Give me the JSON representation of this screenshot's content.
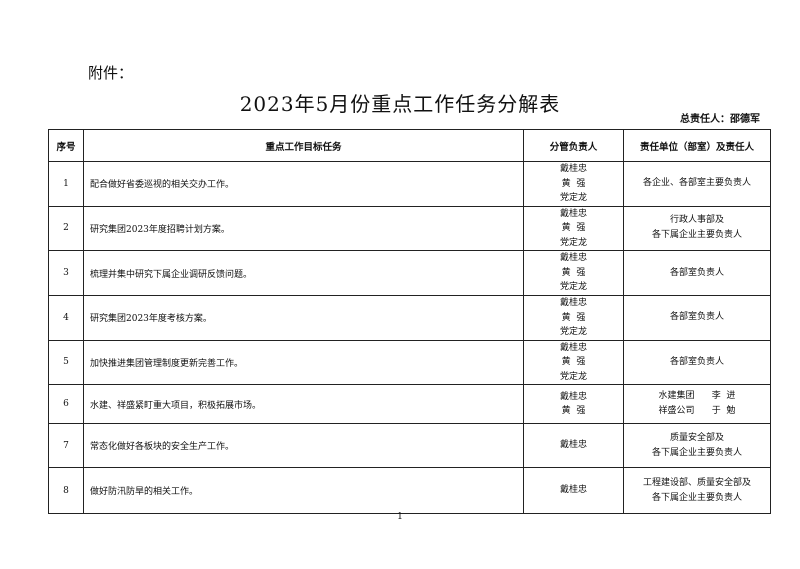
{
  "attachment_label": "附件：",
  "title": "2023年5月份重点工作任务分解表",
  "overall_owner": "总责任人：邵德军",
  "table": {
    "headers": [
      "序号",
      "重点工作目标任务",
      "分管负责人",
      "责任单位（部室）及责任人"
    ],
    "rows": [
      {
        "no": "1",
        "task": "配合做好省委巡视的相关交办工作。",
        "leads": [
          "戴桂忠",
          "黄  强",
          "党定龙"
        ],
        "units": [
          "各企业、各部室主要负责人"
        ]
      },
      {
        "no": "2",
        "task": "研究集团2023年度招聘计划方案。",
        "leads": [
          "戴桂忠",
          "黄  强",
          "党定龙"
        ],
        "units": [
          "行政人事部及",
          "各下属企业主要负责人"
        ]
      },
      {
        "no": "3",
        "task": "梳理并集中研究下属企业调研反馈问题。",
        "leads": [
          "戴桂忠",
          "黄  强",
          "党定龙"
        ],
        "units": [
          "各部室负责人"
        ]
      },
      {
        "no": "4",
        "task": "研究集团2023年度考核方案。",
        "leads": [
          "戴桂忠",
          "黄  强",
          "党定龙"
        ],
        "units": [
          "各部室负责人"
        ]
      },
      {
        "no": "5",
        "task": "加快推进集团管理制度更新完善工作。",
        "leads": [
          "戴桂忠",
          "黄  强",
          "党定龙"
        ],
        "units": [
          "各部室负责人"
        ]
      },
      {
        "no": "6",
        "task": "水建、祥盛紧盯重大项目，积极拓展市场。",
        "leads": [
          "戴桂忠",
          "黄  强"
        ],
        "units": [
          "水建集团      李  进",
          "祥盛公司      于  勉"
        ]
      },
      {
        "no": "7",
        "task": "常态化做好各板块的安全生产工作。",
        "leads": [
          "戴桂忠"
        ],
        "units": [
          "质量安全部及",
          "各下属企业主要负责人"
        ]
      },
      {
        "no": "8",
        "task": "做好防汛防旱的相关工作。",
        "leads": [
          "戴桂忠"
        ],
        "units": [
          "工程建设部、质量安全部及",
          "各下属企业主要负责人"
        ]
      }
    ]
  },
  "page_number": "1"
}
